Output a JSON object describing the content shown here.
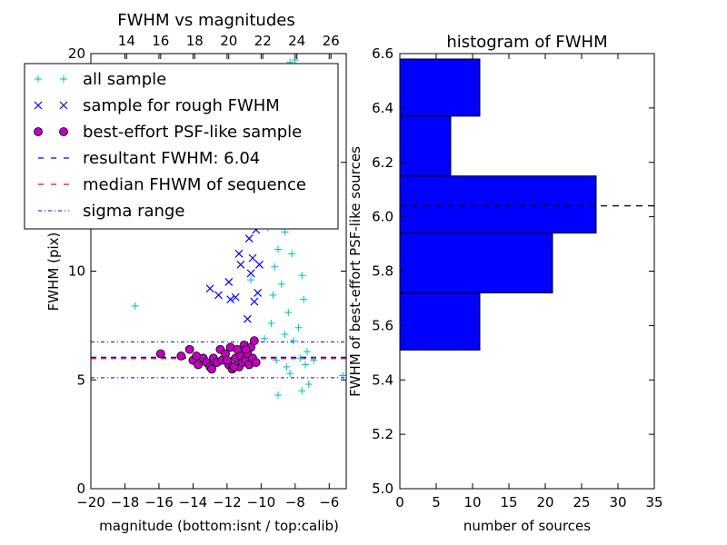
{
  "chart_data": [
    {
      "type": "scatter",
      "title": "FWHM vs magnitudes",
      "xlabel": "magnitude (bottom:isnt / top:calib)",
      "ylabel": "FWHM (pix)",
      "xlim": [
        -20,
        -5
      ],
      "ylim": [
        0,
        20
      ],
      "x_ticks": [
        -20,
        -18,
        -16,
        -14,
        -12,
        -10,
        -8,
        -6
      ],
      "x_tick_labels": [
        "−20",
        "−18",
        "−16",
        "−14",
        "−12",
        "−10",
        "−8",
        "−6"
      ],
      "y_ticks": [
        0,
        5,
        10,
        15,
        20
      ],
      "y_tick_labels": [
        "0",
        "5",
        "10",
        "15",
        "20"
      ],
      "top_axis": {
        "ticks": [
          14,
          16,
          18,
          20,
          22,
          24,
          26
        ],
        "tick_labels": [
          "14",
          "16",
          "18",
          "20",
          "22",
          "24",
          "26"
        ],
        "calib_at_isnt_minus10": 21.9
      },
      "legend": {
        "placement": "upper-left",
        "entries": [
          {
            "label": "all sample",
            "marker": "plus",
            "color": "#00bfbf"
          },
          {
            "label": "sample for rough FWHM",
            "marker": "x",
            "color": "#0000ff"
          },
          {
            "label": "best-effort PSF-like sample",
            "marker": "circle",
            "color": "#bf00bf"
          },
          {
            "label": "resultant FWHM: 6.04",
            "marker": "dashed-line",
            "color": "#0000ff"
          },
          {
            "label": "median FHWM of sequence",
            "marker": "dashed-line",
            "color": "#ff0000"
          },
          {
            "label": "sigma range",
            "marker": "dashdot-line",
            "color": "#0000ff"
          }
        ]
      },
      "reference_lines": {
        "resultant_fwhm": 6.04,
        "median_sequence": 5.98,
        "sigma_range": [
          5.1,
          6.75
        ]
      },
      "series": [
        {
          "name": "all sample",
          "color": "#00bfbf",
          "marker": "plus",
          "points": [
            [
              -17.4,
              8.4
            ],
            [
              -5.2,
              5.2
            ],
            [
              -9.0,
              4.3
            ],
            [
              -8.0,
              19.7
            ],
            [
              -8.3,
              19.6
            ],
            [
              -7.9,
              12.5
            ],
            [
              -8.6,
              11.8
            ],
            [
              -8.2,
              10.8
            ],
            [
              -7.6,
              9.8
            ],
            [
              -8.8,
              9.4
            ],
            [
              -9.2,
              10.2
            ],
            [
              -7.5,
              8.7
            ],
            [
              -8.4,
              8.1
            ],
            [
              -9.4,
              7.6
            ],
            [
              -7.8,
              7.4
            ],
            [
              -8.1,
              6.8
            ],
            [
              -9.8,
              6.9
            ],
            [
              -7.3,
              6.3
            ],
            [
              -8.5,
              5.6
            ],
            [
              -9.1,
              5.9
            ],
            [
              -7.2,
              4.8
            ],
            [
              -7.6,
              4.5
            ],
            [
              -8.3,
              5.3
            ],
            [
              -10.2,
              13.5
            ],
            [
              -9.6,
              12.0
            ],
            [
              -8.7,
              14.2
            ],
            [
              -8.9,
              15.8
            ],
            [
              -8.0,
              17.0
            ],
            [
              -9.3,
              8.9
            ],
            [
              -7.4,
              5.7
            ],
            [
              -6.9,
              5.9
            ],
            [
              -8.6,
              7.1
            ],
            [
              -10.6,
              9.6
            ],
            [
              -9.0,
              11.0
            ],
            [
              -7.7,
              6.0
            ]
          ]
        },
        {
          "name": "sample for rough FWHM",
          "color": "#0000ff",
          "marker": "x",
          "points": [
            [
              -13.0,
              9.2
            ],
            [
              -12.5,
              8.9
            ],
            [
              -11.9,
              9.5
            ],
            [
              -11.2,
              10.3
            ],
            [
              -11.5,
              8.8
            ],
            [
              -11.0,
              12.4
            ],
            [
              -10.7,
              11.5
            ],
            [
              -10.5,
              10.6
            ],
            [
              -10.2,
              9.0
            ],
            [
              -10.9,
              13.0
            ],
            [
              -10.4,
              8.6
            ],
            [
              -11.3,
              10.8
            ],
            [
              -10.3,
              11.9
            ],
            [
              -10.1,
              10.3
            ],
            [
              -10.6,
              9.9
            ],
            [
              -11.8,
              8.7
            ],
            [
              -10.8,
              7.8
            ]
          ]
        },
        {
          "name": "best-effort PSF-like sample",
          "color": "#bf00bf",
          "marker": "circle",
          "points": [
            [
              -15.9,
              6.2
            ],
            [
              -14.7,
              6.1
            ],
            [
              -14.2,
              6.4
            ],
            [
              -14.0,
              5.9
            ],
            [
              -13.7,
              5.7
            ],
            [
              -13.4,
              6.0
            ],
            [
              -13.2,
              5.8
            ],
            [
              -13.0,
              5.6
            ],
            [
              -12.8,
              6.0
            ],
            [
              -12.6,
              5.8
            ],
            [
              -12.4,
              6.4
            ],
            [
              -12.3,
              5.9
            ],
            [
              -12.1,
              6.2
            ],
            [
              -11.9,
              5.7
            ],
            [
              -11.8,
              6.5
            ],
            [
              -11.7,
              5.5
            ],
            [
              -11.5,
              6.0
            ],
            [
              -11.4,
              6.4
            ],
            [
              -11.3,
              5.6
            ],
            [
              -11.2,
              6.1
            ],
            [
              -11.1,
              5.8
            ],
            [
              -11.0,
              6.6
            ],
            [
              -10.9,
              5.9
            ],
            [
              -10.8,
              6.2
            ],
            [
              -10.7,
              5.7
            ],
            [
              -10.6,
              6.5
            ],
            [
              -10.5,
              6.0
            ],
            [
              -10.4,
              6.8
            ],
            [
              -10.3,
              5.8
            ],
            [
              -12.9,
              5.5
            ],
            [
              -13.8,
              6.1
            ],
            [
              -11.6,
              5.6
            ],
            [
              -10.9,
              6.4
            ],
            [
              -12.0,
              5.9
            ]
          ]
        }
      ]
    },
    {
      "type": "bar",
      "orientation": "horizontal",
      "title": "histogram of FWHM",
      "xlabel": "number of sources",
      "ylabel": "FWHM of best-effort PSF-like sources",
      "xlim": [
        0,
        35
      ],
      "ylim": [
        5.0,
        6.6
      ],
      "x_ticks": [
        0,
        5,
        10,
        15,
        20,
        25,
        30,
        35
      ],
      "x_tick_labels": [
        "0",
        "5",
        "10",
        "15",
        "20",
        "25",
        "30",
        "35"
      ],
      "y_ticks": [
        5.0,
        5.2,
        5.4,
        5.6,
        5.8,
        6.0,
        6.2,
        6.4,
        6.6
      ],
      "y_tick_labels": [
        "5.0",
        "5.2",
        "5.4",
        "5.6",
        "5.8",
        "6.0",
        "6.2",
        "6.4",
        "6.6"
      ],
      "bar_color": "#0000ff",
      "bins": [
        {
          "from": 5.51,
          "to": 5.72,
          "count": 11
        },
        {
          "from": 5.72,
          "to": 5.94,
          "count": 21
        },
        {
          "from": 5.94,
          "to": 6.15,
          "count": 27
        },
        {
          "from": 6.15,
          "to": 6.37,
          "count": 7
        },
        {
          "from": 6.37,
          "to": 6.58,
          "count": 11
        }
      ],
      "reference_line": 6.04
    }
  ]
}
